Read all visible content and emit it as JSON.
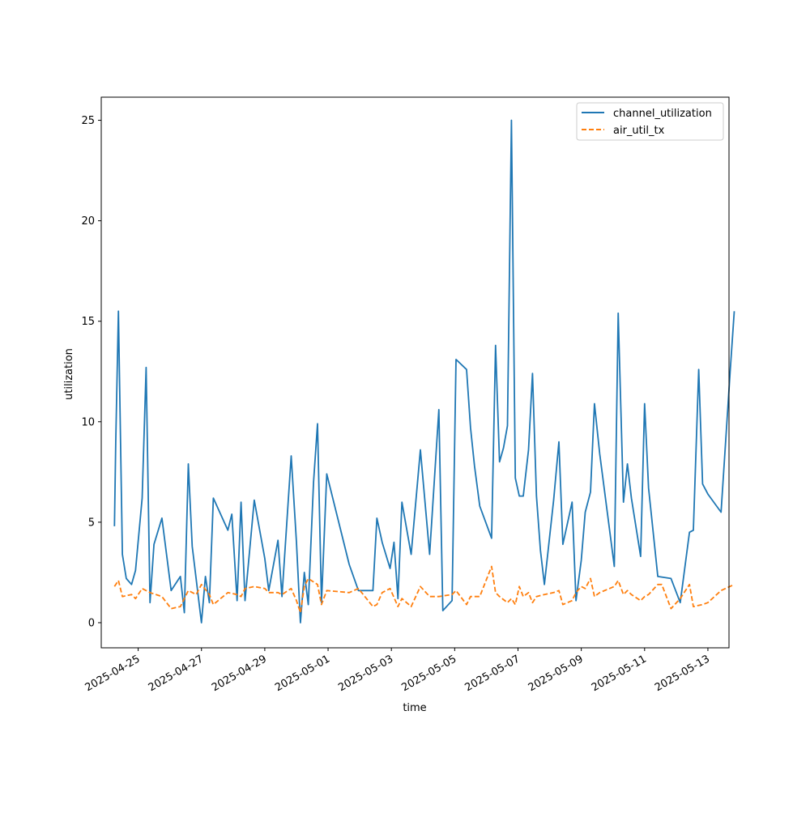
{
  "chart_data": {
    "type": "line",
    "title": "",
    "xlabel": "time",
    "ylabel": "utilization",
    "x_tick_labels": [
      "2025-04-25",
      "2025-04-27",
      "2025-04-29",
      "2025-05-01",
      "2025-05-03",
      "2025-05-05",
      "2025-05-07",
      "2025-05-09",
      "2025-05-11",
      "2025-05-13"
    ],
    "x_ticks": [
      "2025-04-25",
      "2025-04-27",
      "2025-04-29",
      "2025-05-01",
      "2025-05-03",
      "2025-05-05",
      "2025-05-07",
      "2025-05-09",
      "2025-05-11",
      "2025-05-13"
    ],
    "y_tick_labels": [
      "0",
      "5",
      "10",
      "15",
      "20",
      "25"
    ],
    "y_ticks": [
      0,
      5,
      10,
      15,
      20,
      25
    ],
    "xlim": [
      "2025-04-23T20:00",
      "2025-05-13T16:00"
    ],
    "ylim": [
      -1.25,
      26.15
    ],
    "grid": false,
    "legend_position": "top-right",
    "series": [
      {
        "name": "channel_utilization",
        "color": "#1f77b4",
        "dash": "solid",
        "points": [
          [
            "2025-04-24T06:00",
            4.8
          ],
          [
            "2025-04-24T07:00",
            9.0
          ],
          [
            "2025-04-24T09:00",
            15.5
          ],
          [
            "2025-04-24T12:00",
            3.4
          ],
          [
            "2025-04-24T15:00",
            2.2
          ],
          [
            "2025-04-24T19:00",
            1.9
          ],
          [
            "2025-04-24T22:00",
            2.6
          ],
          [
            "2025-04-25T03:00",
            6.2
          ],
          [
            "2025-04-25T06:00",
            12.7
          ],
          [
            "2025-04-25T09:00",
            1.0
          ],
          [
            "2025-04-25T12:00",
            3.9
          ],
          [
            "2025-04-25T18:00",
            5.2
          ],
          [
            "2025-04-26T01:00",
            1.6
          ],
          [
            "2025-04-26T08:00",
            2.3
          ],
          [
            "2025-04-26T11:00",
            0.5
          ],
          [
            "2025-04-26T14:00",
            7.9
          ],
          [
            "2025-04-26T17:00",
            3.8
          ],
          [
            "2025-04-27T00:00",
            0.0
          ],
          [
            "2025-04-27T03:00",
            2.3
          ],
          [
            "2025-04-27T06:00",
            1.0
          ],
          [
            "2025-04-27T09:00",
            6.2
          ],
          [
            "2025-04-27T20:00",
            4.6
          ],
          [
            "2025-04-27T23:00",
            5.4
          ],
          [
            "2025-04-28T03:00",
            1.1
          ],
          [
            "2025-04-28T06:00",
            6.0
          ],
          [
            "2025-04-28T09:00",
            1.1
          ],
          [
            "2025-04-28T16:00",
            6.1
          ],
          [
            "2025-04-29T00:00",
            3.2
          ],
          [
            "2025-04-29T03:00",
            1.6
          ],
          [
            "2025-04-29T10:00",
            4.1
          ],
          [
            "2025-04-29T13:00",
            1.3
          ],
          [
            "2025-04-29T20:00",
            8.3
          ],
          [
            "2025-04-30T00:00",
            4.0
          ],
          [
            "2025-04-30T03:00",
            0.0
          ],
          [
            "2025-04-30T06:00",
            2.5
          ],
          [
            "2025-04-30T09:00",
            0.9
          ],
          [
            "2025-04-30T13:00",
            7.0
          ],
          [
            "2025-04-30T16:00",
            9.9
          ],
          [
            "2025-04-30T19:00",
            1.0
          ],
          [
            "2025-04-30T23:00",
            7.4
          ],
          [
            "2025-05-01T16:00",
            2.9
          ],
          [
            "2025-05-01T23:00",
            1.6
          ],
          [
            "2025-05-02T10:00",
            1.6
          ],
          [
            "2025-05-02T13:00",
            5.2
          ],
          [
            "2025-05-02T17:00",
            4.0
          ],
          [
            "2025-05-02T23:00",
            2.7
          ],
          [
            "2025-05-03T02:00",
            4.0
          ],
          [
            "2025-05-03T05:00",
            1.2
          ],
          [
            "2025-05-03T08:00",
            6.0
          ],
          [
            "2025-05-03T15:00",
            3.4
          ],
          [
            "2025-05-03T22:00",
            8.6
          ],
          [
            "2025-05-04T05:00",
            3.4
          ],
          [
            "2025-05-04T12:00",
            10.6
          ],
          [
            "2025-05-04T15:00",
            0.6
          ],
          [
            "2025-05-04T22:00",
            1.1
          ],
          [
            "2025-05-05T01:00",
            13.1
          ],
          [
            "2025-05-05T09:00",
            12.6
          ],
          [
            "2025-05-05T12:00",
            9.7
          ],
          [
            "2025-05-05T15:00",
            7.8
          ],
          [
            "2025-05-05T19:00",
            5.8
          ],
          [
            "2025-05-06T04:00",
            4.2
          ],
          [
            "2025-05-06T07:00",
            13.8
          ],
          [
            "2025-05-06T10:00",
            8.0
          ],
          [
            "2025-05-06T13:00",
            8.7
          ],
          [
            "2025-05-06T16:00",
            9.8
          ],
          [
            "2025-05-06T19:00",
            25.0
          ],
          [
            "2025-05-06T22:00",
            7.2
          ],
          [
            "2025-05-07T01:00",
            6.3
          ],
          [
            "2025-05-07T04:00",
            6.3
          ],
          [
            "2025-05-07T08:00",
            8.6
          ],
          [
            "2025-05-07T11:00",
            12.4
          ],
          [
            "2025-05-07T14:00",
            6.3
          ],
          [
            "2025-05-07T17:00",
            3.6
          ],
          [
            "2025-05-07T20:00",
            1.9
          ],
          [
            "2025-05-08T03:00",
            6.1
          ],
          [
            "2025-05-08T07:00",
            9.0
          ],
          [
            "2025-05-08T10:00",
            3.9
          ],
          [
            "2025-05-08T17:00",
            6.0
          ],
          [
            "2025-05-08T20:00",
            1.1
          ],
          [
            "2025-05-09T00:00",
            3.1
          ],
          [
            "2025-05-09T03:00",
            5.5
          ],
          [
            "2025-05-09T07:00",
            6.5
          ],
          [
            "2025-05-09T10:00",
            10.9
          ],
          [
            "2025-05-09T14:00",
            8.4
          ],
          [
            "2025-05-10T01:00",
            2.8
          ],
          [
            "2025-05-10T04:00",
            15.4
          ],
          [
            "2025-05-10T08:00",
            6.0
          ],
          [
            "2025-05-10T11:00",
            7.9
          ],
          [
            "2025-05-10T14:00",
            6.2
          ],
          [
            "2025-05-10T21:00",
            3.3
          ],
          [
            "2025-05-11T00:00",
            10.9
          ],
          [
            "2025-05-11T03:00",
            6.7
          ],
          [
            "2025-05-11T10:00",
            2.3
          ],
          [
            "2025-05-11T20:00",
            2.2
          ],
          [
            "2025-05-12T03:00",
            1.0
          ],
          [
            "2025-05-12T10:00",
            4.5
          ],
          [
            "2025-05-12T13:00",
            4.6
          ],
          [
            "2025-05-12T17:00",
            12.6
          ],
          [
            "2025-05-12T20:00",
            6.9
          ],
          [
            "2025-05-13T00:00",
            6.4
          ],
          [
            "2025-05-13T10:00",
            5.5
          ],
          [
            "2025-05-13T17:00",
            12.6
          ],
          [
            "2025-05-13T20:00",
            15.5
          ]
        ]
      },
      {
        "name": "air_util_tx",
        "color": "#ff7f0e",
        "dash": "dashed",
        "points": [
          [
            "2025-04-24T06:00",
            1.8
          ],
          [
            "2025-04-24T09:00",
            2.1
          ],
          [
            "2025-04-24T12:00",
            1.3
          ],
          [
            "2025-04-24T19:00",
            1.4
          ],
          [
            "2025-04-24T22:00",
            1.2
          ],
          [
            "2025-04-25T03:00",
            1.7
          ],
          [
            "2025-04-25T09:00",
            1.5
          ],
          [
            "2025-04-25T18:00",
            1.3
          ],
          [
            "2025-04-26T01:00",
            0.7
          ],
          [
            "2025-04-26T08:00",
            0.8
          ],
          [
            "2025-04-26T14:00",
            1.6
          ],
          [
            "2025-04-26T20:00",
            1.4
          ],
          [
            "2025-04-27T00:00",
            1.9
          ],
          [
            "2025-04-27T06:00",
            1.4
          ],
          [
            "2025-04-27T09:00",
            0.9
          ],
          [
            "2025-04-27T20:00",
            1.5
          ],
          [
            "2025-04-28T03:00",
            1.4
          ],
          [
            "2025-04-28T06:00",
            1.3
          ],
          [
            "2025-04-28T09:00",
            1.7
          ],
          [
            "2025-04-28T16:00",
            1.8
          ],
          [
            "2025-04-29T00:00",
            1.7
          ],
          [
            "2025-04-29T03:00",
            1.5
          ],
          [
            "2025-04-29T10:00",
            1.5
          ],
          [
            "2025-04-29T13:00",
            1.4
          ],
          [
            "2025-04-29T20:00",
            1.7
          ],
          [
            "2025-04-30T00:00",
            1.1
          ],
          [
            "2025-04-30T03:00",
            0.5
          ],
          [
            "2025-04-30T06:00",
            1.8
          ],
          [
            "2025-04-30T09:00",
            2.2
          ],
          [
            "2025-04-30T16:00",
            1.9
          ],
          [
            "2025-04-30T19:00",
            0.9
          ],
          [
            "2025-04-30T23:00",
            1.6
          ],
          [
            "2025-05-01T16:00",
            1.5
          ],
          [
            "2025-05-01T23:00",
            1.7
          ],
          [
            "2025-05-02T10:00",
            0.8
          ],
          [
            "2025-05-02T13:00",
            0.9
          ],
          [
            "2025-05-02T17:00",
            1.5
          ],
          [
            "2025-05-02T23:00",
            1.7
          ],
          [
            "2025-05-03T05:00",
            0.8
          ],
          [
            "2025-05-03T08:00",
            1.2
          ],
          [
            "2025-05-03T15:00",
            0.8
          ],
          [
            "2025-05-03T22:00",
            1.8
          ],
          [
            "2025-05-04T05:00",
            1.3
          ],
          [
            "2025-05-04T12:00",
            1.3
          ],
          [
            "2025-05-04T22:00",
            1.4
          ],
          [
            "2025-05-05T01:00",
            1.6
          ],
          [
            "2025-05-05T09:00",
            0.9
          ],
          [
            "2025-05-05T12:00",
            1.3
          ],
          [
            "2025-05-05T19:00",
            1.3
          ],
          [
            "2025-05-06T04:00",
            2.8
          ],
          [
            "2025-05-06T07:00",
            1.5
          ],
          [
            "2025-05-06T10:00",
            1.3
          ],
          [
            "2025-05-06T16:00",
            1.0
          ],
          [
            "2025-05-06T19:00",
            1.2
          ],
          [
            "2025-05-06T22:00",
            0.9
          ],
          [
            "2025-05-07T01:00",
            1.8
          ],
          [
            "2025-05-07T04:00",
            1.3
          ],
          [
            "2025-05-07T08:00",
            1.5
          ],
          [
            "2025-05-07T11:00",
            1.0
          ],
          [
            "2025-05-07T14:00",
            1.3
          ],
          [
            "2025-05-07T20:00",
            1.4
          ],
          [
            "2025-05-08T03:00",
            1.5
          ],
          [
            "2025-05-08T07:00",
            1.6
          ],
          [
            "2025-05-08T10:00",
            0.9
          ],
          [
            "2025-05-08T17:00",
            1.1
          ],
          [
            "2025-05-08T20:00",
            1.5
          ],
          [
            "2025-05-09T00:00",
            1.8
          ],
          [
            "2025-05-09T03:00",
            1.7
          ],
          [
            "2025-05-09T07:00",
            2.2
          ],
          [
            "2025-05-09T10:00",
            1.3
          ],
          [
            "2025-05-09T14:00",
            1.5
          ],
          [
            "2025-05-10T01:00",
            1.8
          ],
          [
            "2025-05-10T04:00",
            2.1
          ],
          [
            "2025-05-10T08:00",
            1.4
          ],
          [
            "2025-05-10T11:00",
            1.6
          ],
          [
            "2025-05-10T14:00",
            1.4
          ],
          [
            "2025-05-10T21:00",
            1.1
          ],
          [
            "2025-05-11T00:00",
            1.3
          ],
          [
            "2025-05-11T03:00",
            1.4
          ],
          [
            "2025-05-11T10:00",
            1.9
          ],
          [
            "2025-05-11T13:00",
            1.9
          ],
          [
            "2025-05-11T20:00",
            0.7
          ],
          [
            "2025-05-12T03:00",
            1.2
          ],
          [
            "2025-05-12T10:00",
            1.9
          ],
          [
            "2025-05-12T13:00",
            0.8
          ],
          [
            "2025-05-12T20:00",
            0.9
          ],
          [
            "2025-05-13T00:00",
            1.0
          ],
          [
            "2025-05-13T10:00",
            1.6
          ],
          [
            "2025-05-13T20:00",
            1.9
          ]
        ]
      }
    ]
  }
}
